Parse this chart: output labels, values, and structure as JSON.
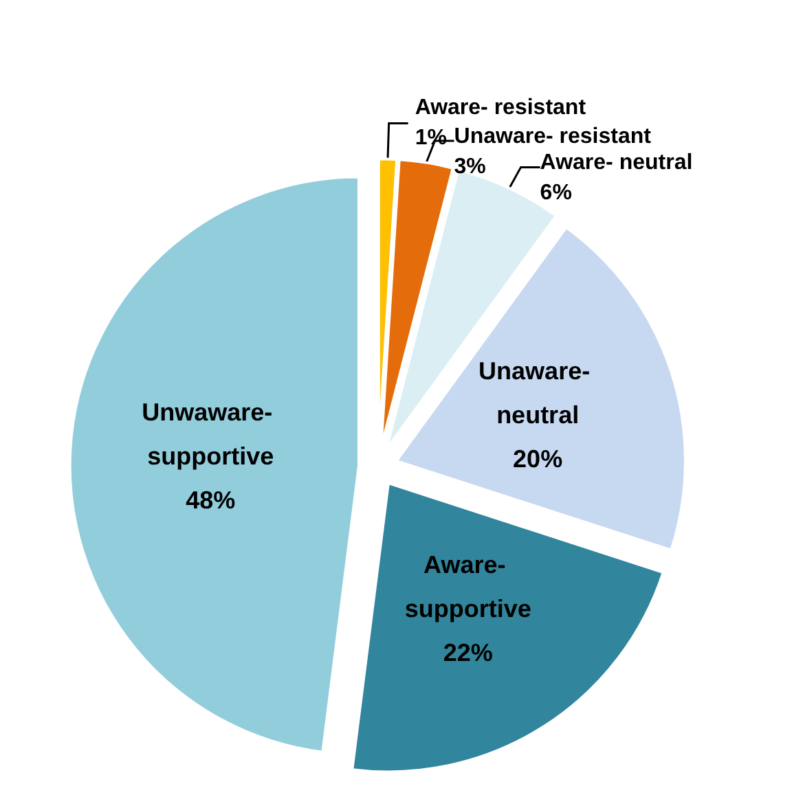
{
  "chart_data": {
    "type": "pie",
    "categories": [
      "Aware- resistant",
      "Unaware- resistant",
      "Aware- neutral",
      "Unaware- neutral",
      "Aware- supportive",
      "Unwaware- supportive"
    ],
    "values": [
      1,
      3,
      6,
      20,
      22,
      48
    ],
    "colors": [
      "#ffc000",
      "#e46c0a",
      "#daeef3",
      "#c6d9f1",
      "#31859c",
      "#92cddc"
    ],
    "value_labels": [
      "1%",
      "3%",
      "6%",
      "20%",
      "22%",
      "48%"
    ],
    "legend": false
  }
}
